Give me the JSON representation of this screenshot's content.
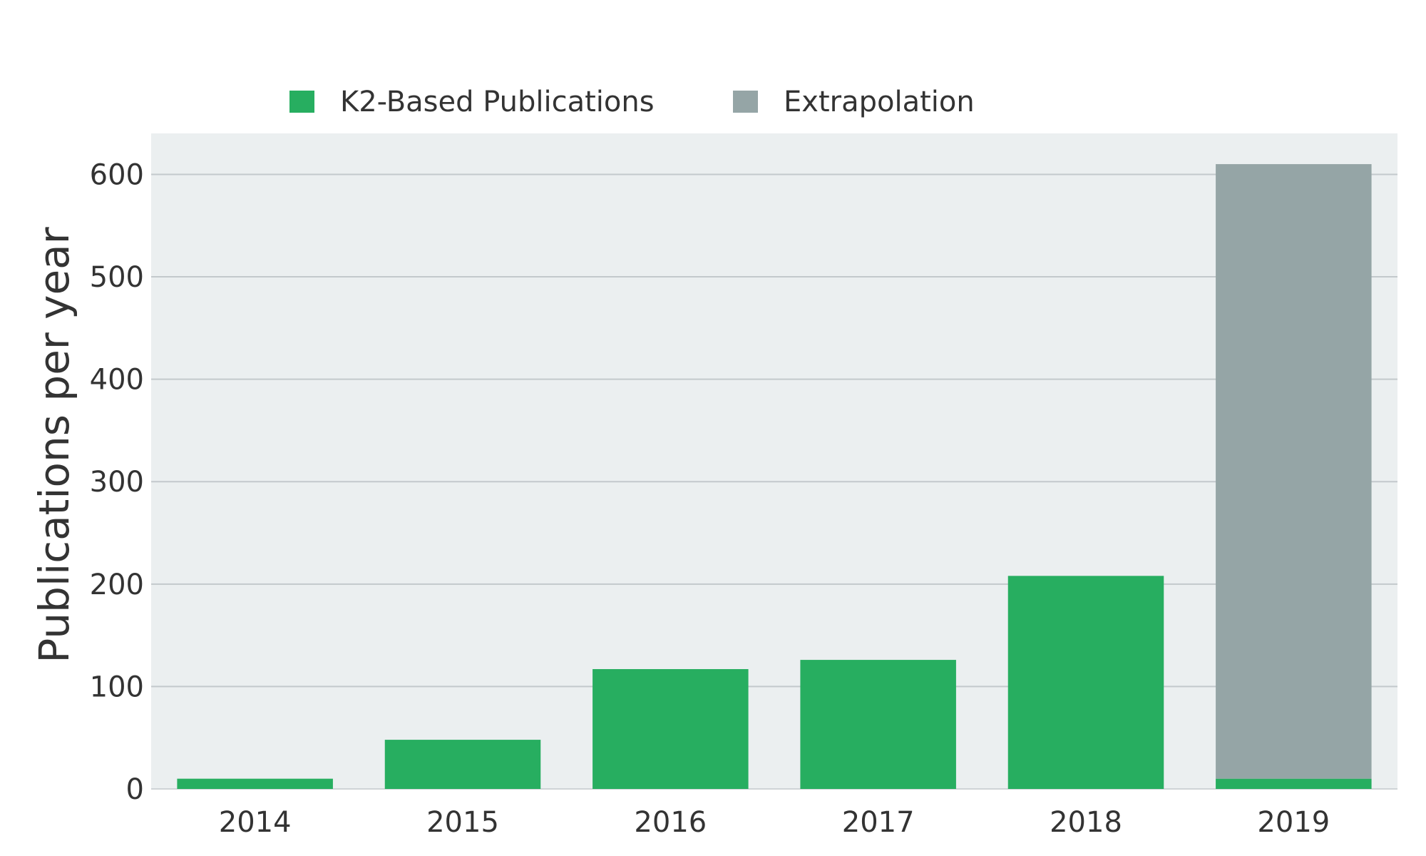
{
  "chart_data": {
    "type": "bar",
    "stacked": true,
    "title": "",
    "xlabel": "",
    "ylabel": "Publications per year",
    "categories": [
      "2014",
      "2015",
      "2016",
      "2017",
      "2018",
      "2019"
    ],
    "series": [
      {
        "name": "K2-Based Publications",
        "color": "#27ae60",
        "values": [
          10,
          48,
          117,
          126,
          208,
          10
        ]
      },
      {
        "name": "Extrapolation",
        "color": "#95a5a6",
        "values": [
          0,
          0,
          0,
          0,
          0,
          600
        ]
      }
    ],
    "ylim": [
      0,
      640
    ],
    "yticks": [
      "0",
      "100",
      "200",
      "300",
      "400",
      "500",
      "600"
    ],
    "grid": true,
    "legend_position": "top",
    "plot_background": "#ebeff0",
    "grid_color": "#c3c9cc"
  }
}
